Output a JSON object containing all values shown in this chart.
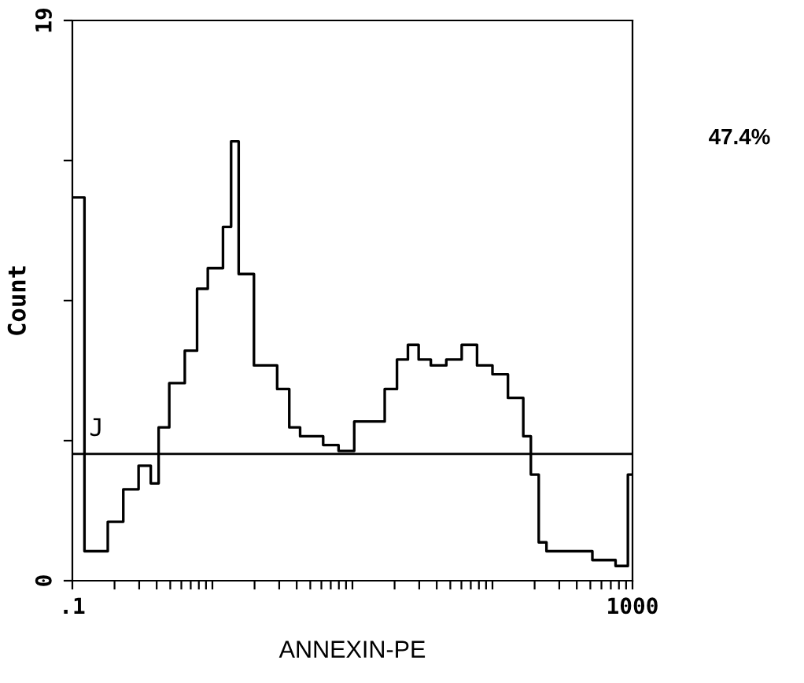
{
  "chart_data": {
    "type": "step",
    "xlabel": "ANNEXIN-PE",
    "ylabel": "Count",
    "x": [
      0.1,
      0.122,
      0.179,
      0.231,
      0.297,
      0.363,
      0.413,
      0.492,
      0.635,
      0.777,
      0.927,
      1.19,
      1.36,
      1.54,
      1.98,
      2.36,
      2.9,
      3.54,
      4.23,
      6.18,
      7.96,
      10.3,
      13.2,
      17.0,
      20.8,
      24.9,
      29.7,
      36.3,
      46.8,
      60.3,
      77.6,
      100,
      129,
      166,
      188,
      214,
      243,
      355,
      517,
      757,
      927,
      1000
    ],
    "values": [
      13.0,
      1.0,
      2.0,
      3.1,
      3.9,
      3.3,
      5.2,
      6.7,
      7.8,
      9.9,
      10.6,
      12.0,
      14.9,
      10.4,
      7.3,
      7.3,
      6.5,
      5.2,
      4.9,
      4.6,
      4.4,
      5.4,
      5.4,
      6.5,
      7.5,
      8.0,
      7.5,
      7.3,
      7.5,
      8.0,
      7.3,
      7.0,
      6.2,
      4.9,
      3.6,
      1.3,
      1.0,
      1.0,
      0.7,
      0.5,
      3.6,
      3.6
    ],
    "color": "#000000",
    "log": "x",
    "xlim": [
      0.1,
      1000
    ],
    "ylim": [
      0,
      19
    ],
    "xticks": [
      {
        "value": 0.1,
        "label": ".1"
      },
      {
        "value": 0.2,
        "label": null
      },
      {
        "value": 0.3,
        "label": null
      },
      {
        "value": 0.4,
        "label": null
      },
      {
        "value": 0.5,
        "label": null
      },
      {
        "value": 0.6,
        "label": null
      },
      {
        "value": 0.7,
        "label": null
      },
      {
        "value": 0.8,
        "label": null
      },
      {
        "value": 0.9,
        "label": null
      },
      {
        "value": 1,
        "label": null
      },
      {
        "value": 2,
        "label": null
      },
      {
        "value": 3,
        "label": null
      },
      {
        "value": 4,
        "label": null
      },
      {
        "value": 5,
        "label": null
      },
      {
        "value": 6,
        "label": null
      },
      {
        "value": 7,
        "label": null
      },
      {
        "value": 8,
        "label": null
      },
      {
        "value": 9,
        "label": null
      },
      {
        "value": 10,
        "label": null
      },
      {
        "value": 20,
        "label": null
      },
      {
        "value": 30,
        "label": null
      },
      {
        "value": 40,
        "label": null
      },
      {
        "value": 50,
        "label": null
      },
      {
        "value": 60,
        "label": null
      },
      {
        "value": 70,
        "label": null
      },
      {
        "value": 80,
        "label": null
      },
      {
        "value": 90,
        "label": null
      },
      {
        "value": 100,
        "label": null
      },
      {
        "value": 200,
        "label": null
      },
      {
        "value": 300,
        "label": null
      },
      {
        "value": 400,
        "label": null
      },
      {
        "value": 500,
        "label": null
      },
      {
        "value": 600,
        "label": null
      },
      {
        "value": 700,
        "label": null
      },
      {
        "value": 800,
        "label": null
      },
      {
        "value": 900,
        "label": null
      },
      {
        "value": 1000,
        "label": "1000"
      }
    ],
    "yticks": [
      0,
      {
        "value": 4.75,
        "label": null
      },
      {
        "value": 9.5,
        "label": null
      },
      {
        "value": 14.25,
        "label": null
      },
      19
    ],
    "ref_lines": [
      {
        "axis": "y",
        "value": 4.3,
        "label": "J",
        "color": "#000000"
      }
    ],
    "annotations": [
      "47.4%"
    ],
    "grid": false,
    "legend": false
  }
}
